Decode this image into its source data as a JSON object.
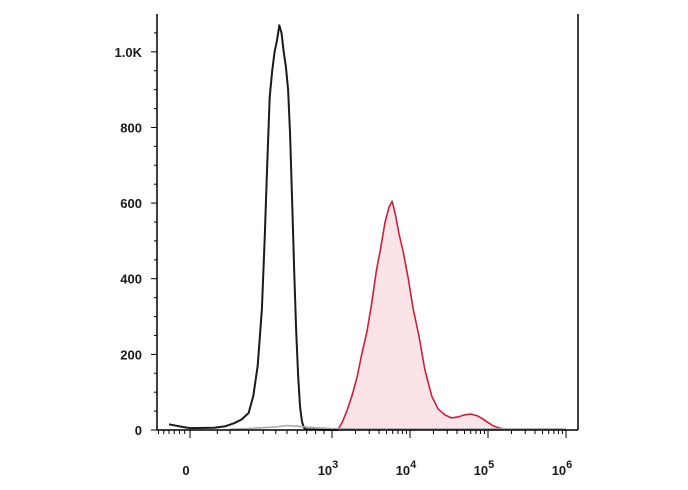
{
  "chart_data": {
    "type": "area",
    "title": "",
    "xlabel": "",
    "ylabel": "",
    "xscale": "biexponential",
    "xlim": [
      -100,
      1000000
    ],
    "ylim": [
      0,
      1100
    ],
    "grid": false,
    "legend": "none",
    "y_ticks": [
      {
        "value": 0,
        "label": "0"
      },
      {
        "value": 200,
        "label": "200"
      },
      {
        "value": 400,
        "label": "400"
      },
      {
        "value": 600,
        "label": "600"
      },
      {
        "value": 800,
        "label": "800"
      },
      {
        "value": 1000,
        "label": "1.0K"
      }
    ],
    "x_ticks": [
      {
        "value": 0,
        "label": "0",
        "base": "",
        "exp": ""
      },
      {
        "value": 1000,
        "label": "",
        "base": "10",
        "exp": "3"
      },
      {
        "value": 10000,
        "label": "",
        "base": "10",
        "exp": "4"
      },
      {
        "value": 100000,
        "label": "",
        "base": "10",
        "exp": "5"
      },
      {
        "value": 1000000,
        "label": "",
        "base": "10",
        "exp": "6"
      }
    ],
    "series": [
      {
        "color": "#1a1a1a",
        "fill": "none",
        "points": [
          [
            -60,
            15
          ],
          [
            -20,
            8
          ],
          [
            0,
            5
          ],
          [
            40,
            6
          ],
          [
            80,
            10
          ],
          [
            120,
            18
          ],
          [
            160,
            28
          ],
          [
            200,
            45
          ],
          [
            230,
            90
          ],
          [
            260,
            170
          ],
          [
            290,
            320
          ],
          [
            310,
            500
          ],
          [
            330,
            700
          ],
          [
            350,
            880
          ],
          [
            370,
            950
          ],
          [
            390,
            1000
          ],
          [
            410,
            1030
          ],
          [
            430,
            1070
          ],
          [
            450,
            1050
          ],
          [
            470,
            1000
          ],
          [
            490,
            960
          ],
          [
            510,
            900
          ],
          [
            530,
            780
          ],
          [
            550,
            600
          ],
          [
            570,
            420
          ],
          [
            590,
            260
          ],
          [
            610,
            140
          ],
          [
            630,
            60
          ],
          [
            650,
            22
          ],
          [
            670,
            6
          ],
          [
            700,
            2
          ],
          [
            800,
            1
          ],
          [
            1200,
            0
          ]
        ]
      },
      {
        "color": "#cc1f3a",
        "fill": "#fbe4e8",
        "points": [
          [
            1200,
            2
          ],
          [
            1350,
            20
          ],
          [
            1550,
            50
          ],
          [
            1800,
            90
          ],
          [
            2100,
            140
          ],
          [
            2400,
            200
          ],
          [
            2800,
            260
          ],
          [
            3200,
            330
          ],
          [
            3700,
            420
          ],
          [
            4200,
            480
          ],
          [
            4800,
            550
          ],
          [
            5400,
            590
          ],
          [
            5900,
            605
          ],
          [
            6500,
            570
          ],
          [
            7200,
            520
          ],
          [
            8200,
            470
          ],
          [
            9500,
            400
          ],
          [
            11000,
            320
          ],
          [
            13000,
            250
          ],
          [
            15500,
            160
          ],
          [
            19000,
            90
          ],
          [
            23000,
            55
          ],
          [
            28000,
            40
          ],
          [
            34000,
            32
          ],
          [
            42000,
            35
          ],
          [
            50000,
            40
          ],
          [
            60000,
            42
          ],
          [
            72000,
            38
          ],
          [
            85000,
            30
          ],
          [
            100000,
            20
          ],
          [
            115000,
            12
          ],
          [
            135000,
            6
          ],
          [
            160000,
            2
          ]
        ]
      },
      {
        "color": "#aaaaaa",
        "fill": "none",
        "points": [
          [
            100,
            2
          ],
          [
            200,
            4
          ],
          [
            300,
            6
          ],
          [
            400,
            8
          ],
          [
            500,
            12
          ],
          [
            600,
            10
          ],
          [
            700,
            8
          ],
          [
            800,
            6
          ],
          [
            1000,
            4
          ],
          [
            2000,
            3
          ],
          [
            10000,
            3
          ],
          [
            100000,
            3
          ],
          [
            1000000,
            3
          ]
        ]
      }
    ]
  }
}
